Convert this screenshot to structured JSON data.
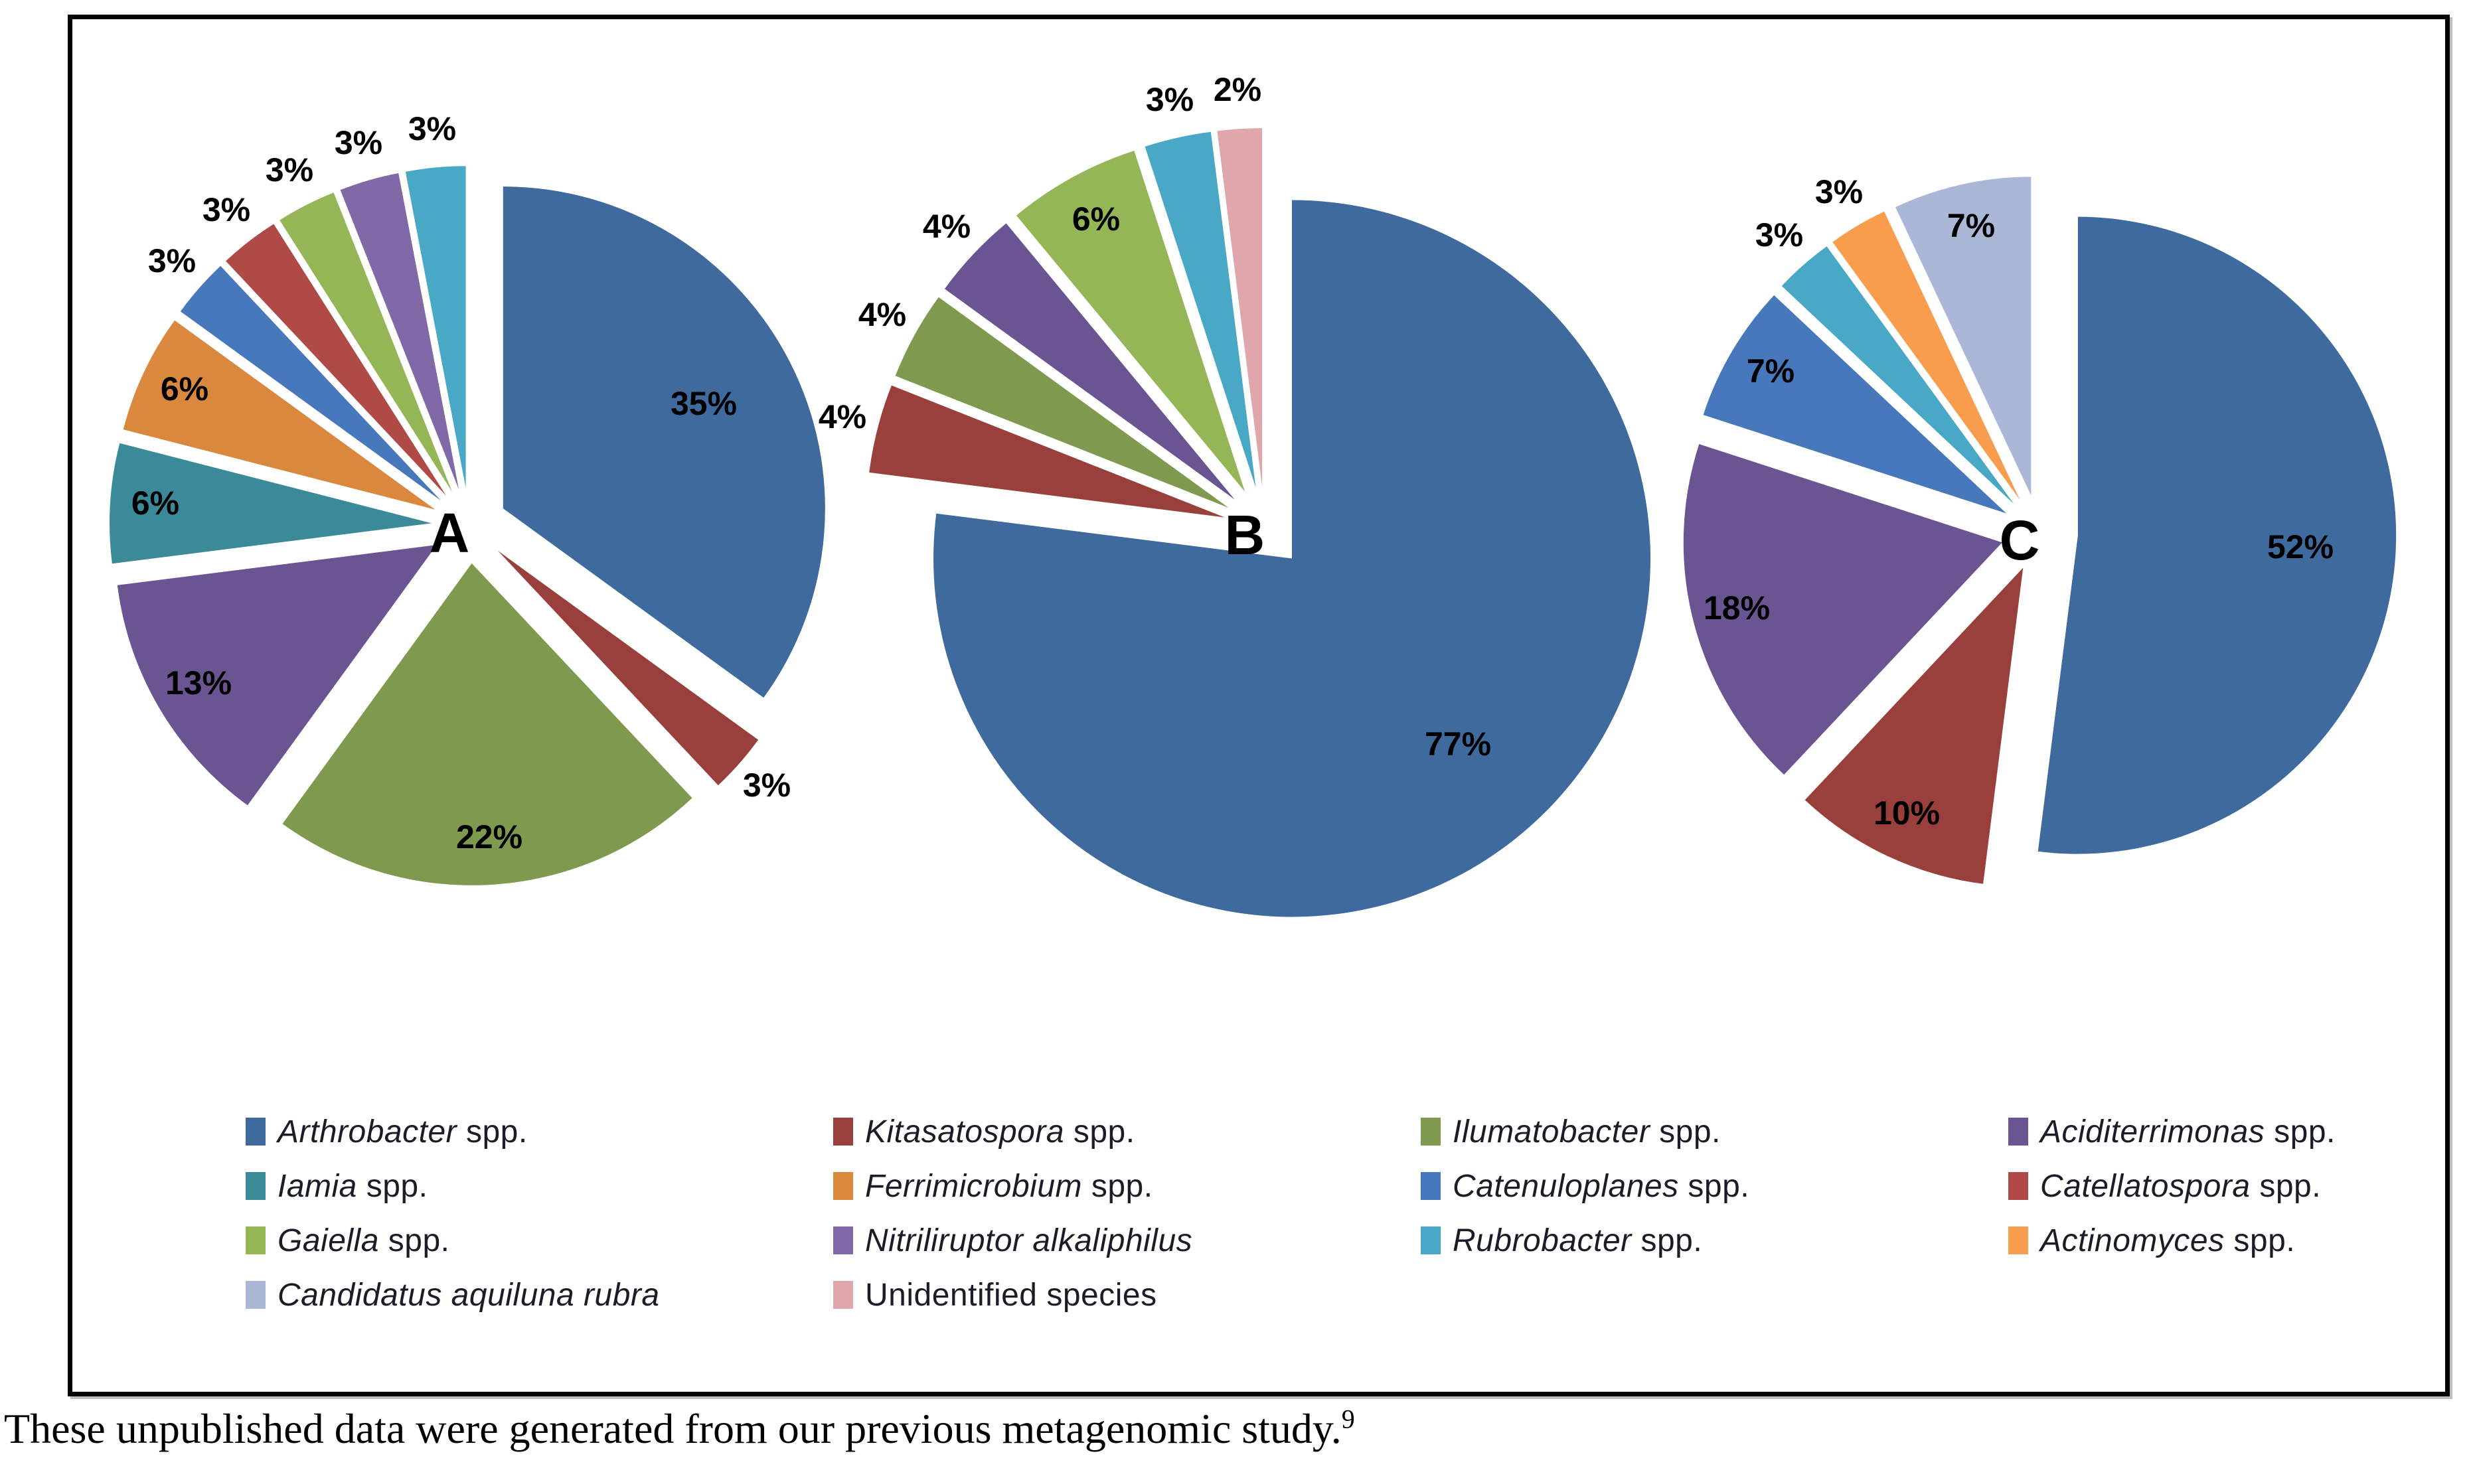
{
  "palette": {
    "Arthrobacter": "#3F6A9D",
    "Kitasatospora": "#9A403C",
    "Ilumatobacter": "#7F9A4E",
    "Aciditerrimonas": "#6A5492",
    "Iamia": "#3A8A99",
    "Ferrimicrobium": "#D9883E",
    "Catenuloplanes": "#4878BC",
    "Catellatospora": "#B04A47",
    "Gaiella": "#94B657",
    "Nitriliruptor": "#8069A6",
    "Rubrobacter": "#48A8C6",
    "Actinomyces": "#F89C4E",
    "Candidatus": "#AAB7D7",
    "Unidentified": "#DFA6AB"
  },
  "legend": {
    "items": [
      {
        "species": "Arthrobacter",
        "italic": "Arthrobacter",
        "plain": " spp."
      },
      {
        "species": "Kitasatospora",
        "italic": "Kitasatospora",
        "plain": " spp."
      },
      {
        "species": "Ilumatobacter",
        "italic": "Ilumatobacter",
        "plain": " spp."
      },
      {
        "species": "Aciditerrimonas",
        "italic": "Aciditerrimonas",
        "plain": " spp."
      },
      {
        "species": "Iamia",
        "italic": "Iamia",
        "plain": " spp."
      },
      {
        "species": "Ferrimicrobium",
        "italic": "Ferrimicrobium",
        "plain": " spp."
      },
      {
        "species": "Catenuloplanes",
        "italic": "Catenuloplanes",
        "plain": " spp."
      },
      {
        "species": "Catellatospora",
        "italic": "Catellatospora",
        "plain": " spp."
      },
      {
        "species": "Gaiella",
        "italic": "Gaiella",
        "plain": " spp."
      },
      {
        "species": "Nitriliruptor",
        "italic": "Nitriliruptor alkaliphilus",
        "plain": ""
      },
      {
        "species": "Rubrobacter",
        "italic": "Rubrobacter",
        "plain": " spp."
      },
      {
        "species": "Actinomyces",
        "italic": "Actinomyces",
        "plain": " spp."
      },
      {
        "species": "Candidatus",
        "italic": "Candidatus aquiluna rubra",
        "plain": ""
      },
      {
        "species": "Unidentified",
        "italic": "",
        "plain": "Unidentified species"
      }
    ]
  },
  "chart_data": [
    {
      "type": "pie",
      "label": "A",
      "unit": "%",
      "slices": [
        {
          "species": "Arthrobacter",
          "value": 35,
          "label": "35%"
        },
        {
          "species": "Kitasatospora",
          "value": 3,
          "label": "3%"
        },
        {
          "species": "Ilumatobacter",
          "value": 22,
          "label": "22%"
        },
        {
          "species": "Aciditerrimonas",
          "value": 13,
          "label": "13%"
        },
        {
          "species": "Iamia",
          "value": 6,
          "label": "6%"
        },
        {
          "species": "Ferrimicrobium",
          "value": 6,
          "label": "6%"
        },
        {
          "species": "Catenuloplanes",
          "value": 3,
          "label": "3%"
        },
        {
          "species": "Catellatospora",
          "value": 3,
          "label": "3%"
        },
        {
          "species": "Gaiella",
          "value": 3,
          "label": "3%"
        },
        {
          "species": "Nitriliruptor",
          "value": 3,
          "label": "3%"
        },
        {
          "species": "Rubrobacter",
          "value": 3,
          "label": "3%"
        }
      ]
    },
    {
      "type": "pie",
      "label": "B",
      "unit": "%",
      "slices": [
        {
          "species": "Arthrobacter",
          "value": 77,
          "label": "77%"
        },
        {
          "species": "Kitasatospora",
          "value": 4,
          "label": "4%"
        },
        {
          "species": "Ilumatobacter",
          "value": 4,
          "label": "4%"
        },
        {
          "species": "Aciditerrimonas",
          "value": 4,
          "label": "4%"
        },
        {
          "species": "Gaiella",
          "value": 6,
          "label": "6%"
        },
        {
          "species": "Rubrobacter",
          "value": 3,
          "label": "3%"
        },
        {
          "species": "Unidentified",
          "value": 2,
          "label": "2%"
        }
      ]
    },
    {
      "type": "pie",
      "label": "C",
      "unit": "%",
      "slices": [
        {
          "species": "Arthrobacter",
          "value": 52,
          "label": "52%"
        },
        {
          "species": "Kitasatospora",
          "value": 10,
          "label": "10%"
        },
        {
          "species": "Aciditerrimonas",
          "value": 18,
          "label": "18%"
        },
        {
          "species": "Catenuloplanes",
          "value": 7,
          "label": "7%"
        },
        {
          "species": "Rubrobacter",
          "value": 3,
          "label": "3%"
        },
        {
          "species": "Actinomyces",
          "value": 3,
          "label": "3%"
        },
        {
          "species": "Candidatus",
          "value": 7,
          "label": "7%"
        }
      ]
    }
  ],
  "caption": {
    "text": "These unpublished data were generated from our previous metagenomic study.",
    "superscript": "9"
  }
}
